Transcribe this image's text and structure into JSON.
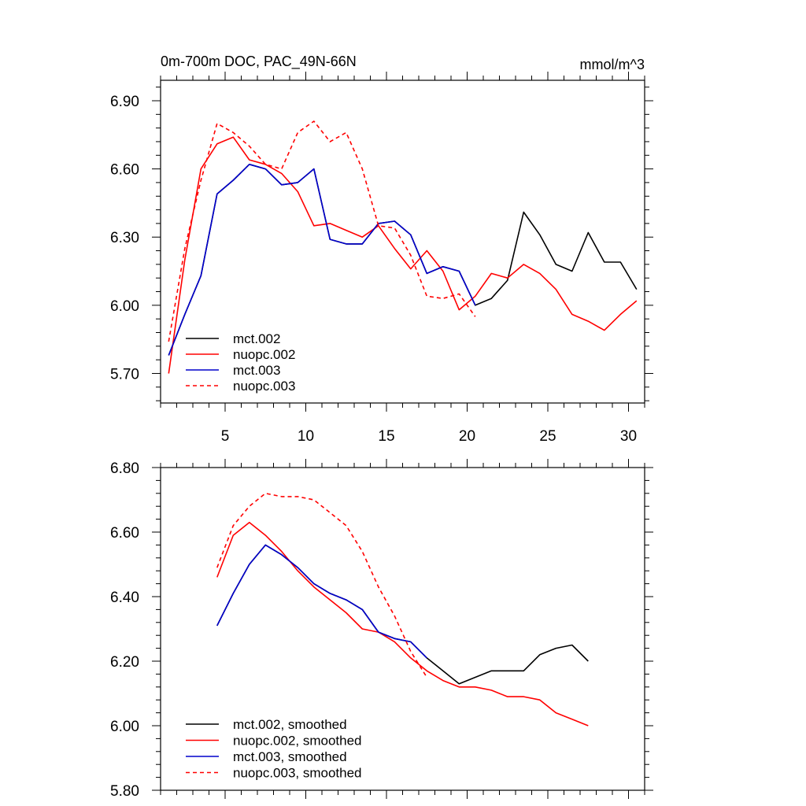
{
  "colors": {
    "black": "#000000",
    "red": "#ff0000",
    "blue": "#0000cc"
  },
  "chart_data": [
    {
      "type": "line",
      "title": "0m-700m DOC, PAC_49N-66N",
      "units": "mmol/m^3",
      "xlim": [
        1,
        31
      ],
      "ylim": [
        5.57,
        6.99
      ],
      "x_major_ticks": [
        5,
        10,
        15,
        20,
        25,
        30
      ],
      "x_tick_labels": [
        "5",
        "10",
        "15",
        "20",
        "25",
        "30"
      ],
      "y_major_ticks": [
        5.7,
        6.0,
        6.3,
        6.6,
        6.9
      ],
      "y_tick_labels": [
        "5.70",
        "6.00",
        "6.30",
        "6.60",
        "6.90"
      ],
      "grid": false,
      "legend_position": "bottom-left",
      "series": [
        {
          "name": "mct.002",
          "color": "#000000",
          "dash": "solid",
          "x": [
            1.5,
            2.5,
            3.5,
            4.5,
            5.5,
            6.5,
            7.5,
            8.5,
            9.5,
            10.5,
            11.5,
            12.5,
            13.5,
            14.5,
            15.5,
            16.5,
            17.5,
            18.5,
            19.5,
            20.5,
            21.5,
            22.5,
            23.5,
            24.5,
            25.5,
            26.5,
            27.5,
            28.5,
            29.5,
            30.5
          ],
          "y": [
            5.78,
            5.96,
            6.13,
            6.49,
            6.55,
            6.62,
            6.6,
            6.53,
            6.54,
            6.6,
            6.29,
            6.27,
            6.27,
            6.36,
            6.37,
            6.31,
            6.14,
            6.17,
            6.15,
            6.0,
            6.03,
            6.11,
            6.41,
            6.31,
            6.18,
            6.15,
            6.32,
            6.19,
            6.19,
            6.07
          ]
        },
        {
          "name": "nuopc.002",
          "color": "#ff0000",
          "dash": "solid",
          "x": [
            1.5,
            2.5,
            3.5,
            4.5,
            5.5,
            6.5,
            7.5,
            8.5,
            9.5,
            10.5,
            11.5,
            12.5,
            13.5,
            14.5,
            15.5,
            16.5,
            17.5,
            18.5,
            19.5,
            20.5,
            21.5,
            22.5,
            23.5,
            24.5,
            25.5,
            26.5,
            27.5,
            28.5,
            29.5,
            30.5
          ],
          "y": [
            5.7,
            6.2,
            6.6,
            6.71,
            6.74,
            6.64,
            6.62,
            6.58,
            6.5,
            6.35,
            6.36,
            6.33,
            6.3,
            6.35,
            6.25,
            6.16,
            6.24,
            6.15,
            5.98,
            6.04,
            6.14,
            6.12,
            6.18,
            6.14,
            6.07,
            5.96,
            5.93,
            5.89,
            5.96,
            6.02
          ]
        },
        {
          "name": "mct.003",
          "color": "#0000cc",
          "dash": "solid",
          "x": [
            1.5,
            2.5,
            3.5,
            4.5,
            5.5,
            6.5,
            7.5,
            8.5,
            9.5,
            10.5,
            11.5,
            12.5,
            13.5,
            14.5,
            15.5,
            16.5,
            17.5,
            18.5,
            19.5,
            20.5
          ],
          "y": [
            5.78,
            5.96,
            6.13,
            6.49,
            6.55,
            6.62,
            6.6,
            6.53,
            6.54,
            6.6,
            6.29,
            6.27,
            6.27,
            6.36,
            6.37,
            6.31,
            6.14,
            6.17,
            6.15,
            6.0
          ]
        },
        {
          "name": "nuopc.003",
          "color": "#ff0000",
          "dash": "dashed",
          "x": [
            1.5,
            2.5,
            3.5,
            4.5,
            5.5,
            6.5,
            7.5,
            8.5,
            9.5,
            10.5,
            11.5,
            12.5,
            13.5,
            14.5,
            15.5,
            16.5,
            17.5,
            18.5,
            19.5,
            20.5
          ],
          "y": [
            5.84,
            6.25,
            6.55,
            6.8,
            6.76,
            6.7,
            6.62,
            6.6,
            6.76,
            6.81,
            6.72,
            6.76,
            6.6,
            6.35,
            6.34,
            6.22,
            6.04,
            6.03,
            6.05,
            5.95
          ]
        }
      ]
    },
    {
      "type": "line",
      "xlim": [
        1,
        31
      ],
      "ylim": [
        5.8,
        6.8
      ],
      "x_major_ticks": [
        5,
        10,
        15,
        20,
        25,
        30
      ],
      "y_major_ticks": [
        5.8,
        6.0,
        6.2,
        6.4,
        6.6,
        6.8
      ],
      "y_tick_labels": [
        "5.80",
        "6.00",
        "6.20",
        "6.40",
        "6.60",
        "6.80"
      ],
      "grid": false,
      "legend_position": "bottom-left",
      "series": [
        {
          "name": "mct.002, smoothed",
          "color": "#000000",
          "dash": "solid",
          "x": [
            4.5,
            5.5,
            6.5,
            7.5,
            8.5,
            9.5,
            10.5,
            11.5,
            12.5,
            13.5,
            14.5,
            15.5,
            16.5,
            17.5,
            18.5,
            19.5,
            20.5,
            21.5,
            22.5,
            23.5,
            24.5,
            25.5,
            26.5,
            27.5
          ],
          "y": [
            6.31,
            6.41,
            6.5,
            6.56,
            6.53,
            6.49,
            6.44,
            6.41,
            6.39,
            6.36,
            6.29,
            6.27,
            6.26,
            6.21,
            6.17,
            6.13,
            6.15,
            6.17,
            6.17,
            6.17,
            6.22,
            6.24,
            6.25,
            6.2
          ]
        },
        {
          "name": "nuopc.002, smoothed",
          "color": "#ff0000",
          "dash": "solid",
          "x": [
            4.5,
            5.5,
            6.5,
            7.5,
            8.5,
            9.5,
            10.5,
            11.5,
            12.5,
            13.5,
            14.5,
            15.5,
            16.5,
            17.5,
            18.5,
            19.5,
            20.5,
            21.5,
            22.5,
            23.5,
            24.5,
            25.5,
            26.5,
            27.5
          ],
          "y": [
            6.46,
            6.59,
            6.63,
            6.59,
            6.54,
            6.48,
            6.43,
            6.39,
            6.35,
            6.3,
            6.29,
            6.26,
            6.21,
            6.17,
            6.14,
            6.12,
            6.12,
            6.11,
            6.09,
            6.09,
            6.08,
            6.04,
            6.02,
            6.0
          ]
        },
        {
          "name": "mct.003, smoothed",
          "color": "#0000cc",
          "dash": "solid",
          "x": [
            4.5,
            5.5,
            6.5,
            7.5,
            8.5,
            9.5,
            10.5,
            11.5,
            12.5,
            13.5,
            14.5,
            15.5,
            16.5,
            17.5
          ],
          "y": [
            6.31,
            6.41,
            6.5,
            6.56,
            6.53,
            6.49,
            6.44,
            6.41,
            6.39,
            6.36,
            6.29,
            6.27,
            6.26,
            6.21
          ]
        },
        {
          "name": "nuopc.003, smoothed",
          "color": "#ff0000",
          "dash": "dashed",
          "x": [
            4.5,
            5.5,
            6.5,
            7.5,
            8.5,
            9.5,
            10.5,
            11.5,
            12.5,
            13.5,
            14.5,
            15.5,
            16.5,
            17.5
          ],
          "y": [
            6.49,
            6.62,
            6.68,
            6.72,
            6.71,
            6.71,
            6.7,
            6.66,
            6.62,
            6.54,
            6.43,
            6.34,
            6.23,
            6.15
          ]
        }
      ]
    }
  ]
}
